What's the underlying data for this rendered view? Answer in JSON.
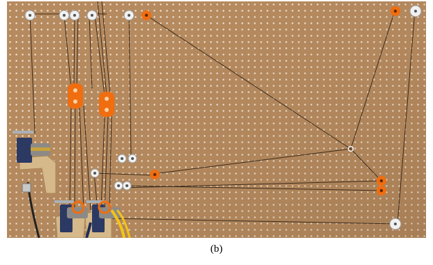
{
  "figure": {
    "caption": "(b)"
  },
  "colors": {
    "pegboard": "#b68a5f",
    "pegboard_hole": "#fffaf0",
    "cable": "#3a2a1a",
    "pulley_white": "#f1f1f1",
    "pulley_orange": "#f06d10",
    "clamp_blue": "#2c3a63",
    "wood_mount": "#d6b98a",
    "wire_yellow": "#f2c418"
  },
  "objects": [
    {
      "name": "pegboard-panel"
    },
    {
      "name": "white-pulleys"
    },
    {
      "name": "orange-pulleys"
    },
    {
      "name": "orange-pulley-blocks"
    },
    {
      "name": "tendon-cables"
    },
    {
      "name": "cable-junction-ring"
    },
    {
      "name": "motor-clamps"
    },
    {
      "name": "wooden-motor-mounts"
    }
  ]
}
